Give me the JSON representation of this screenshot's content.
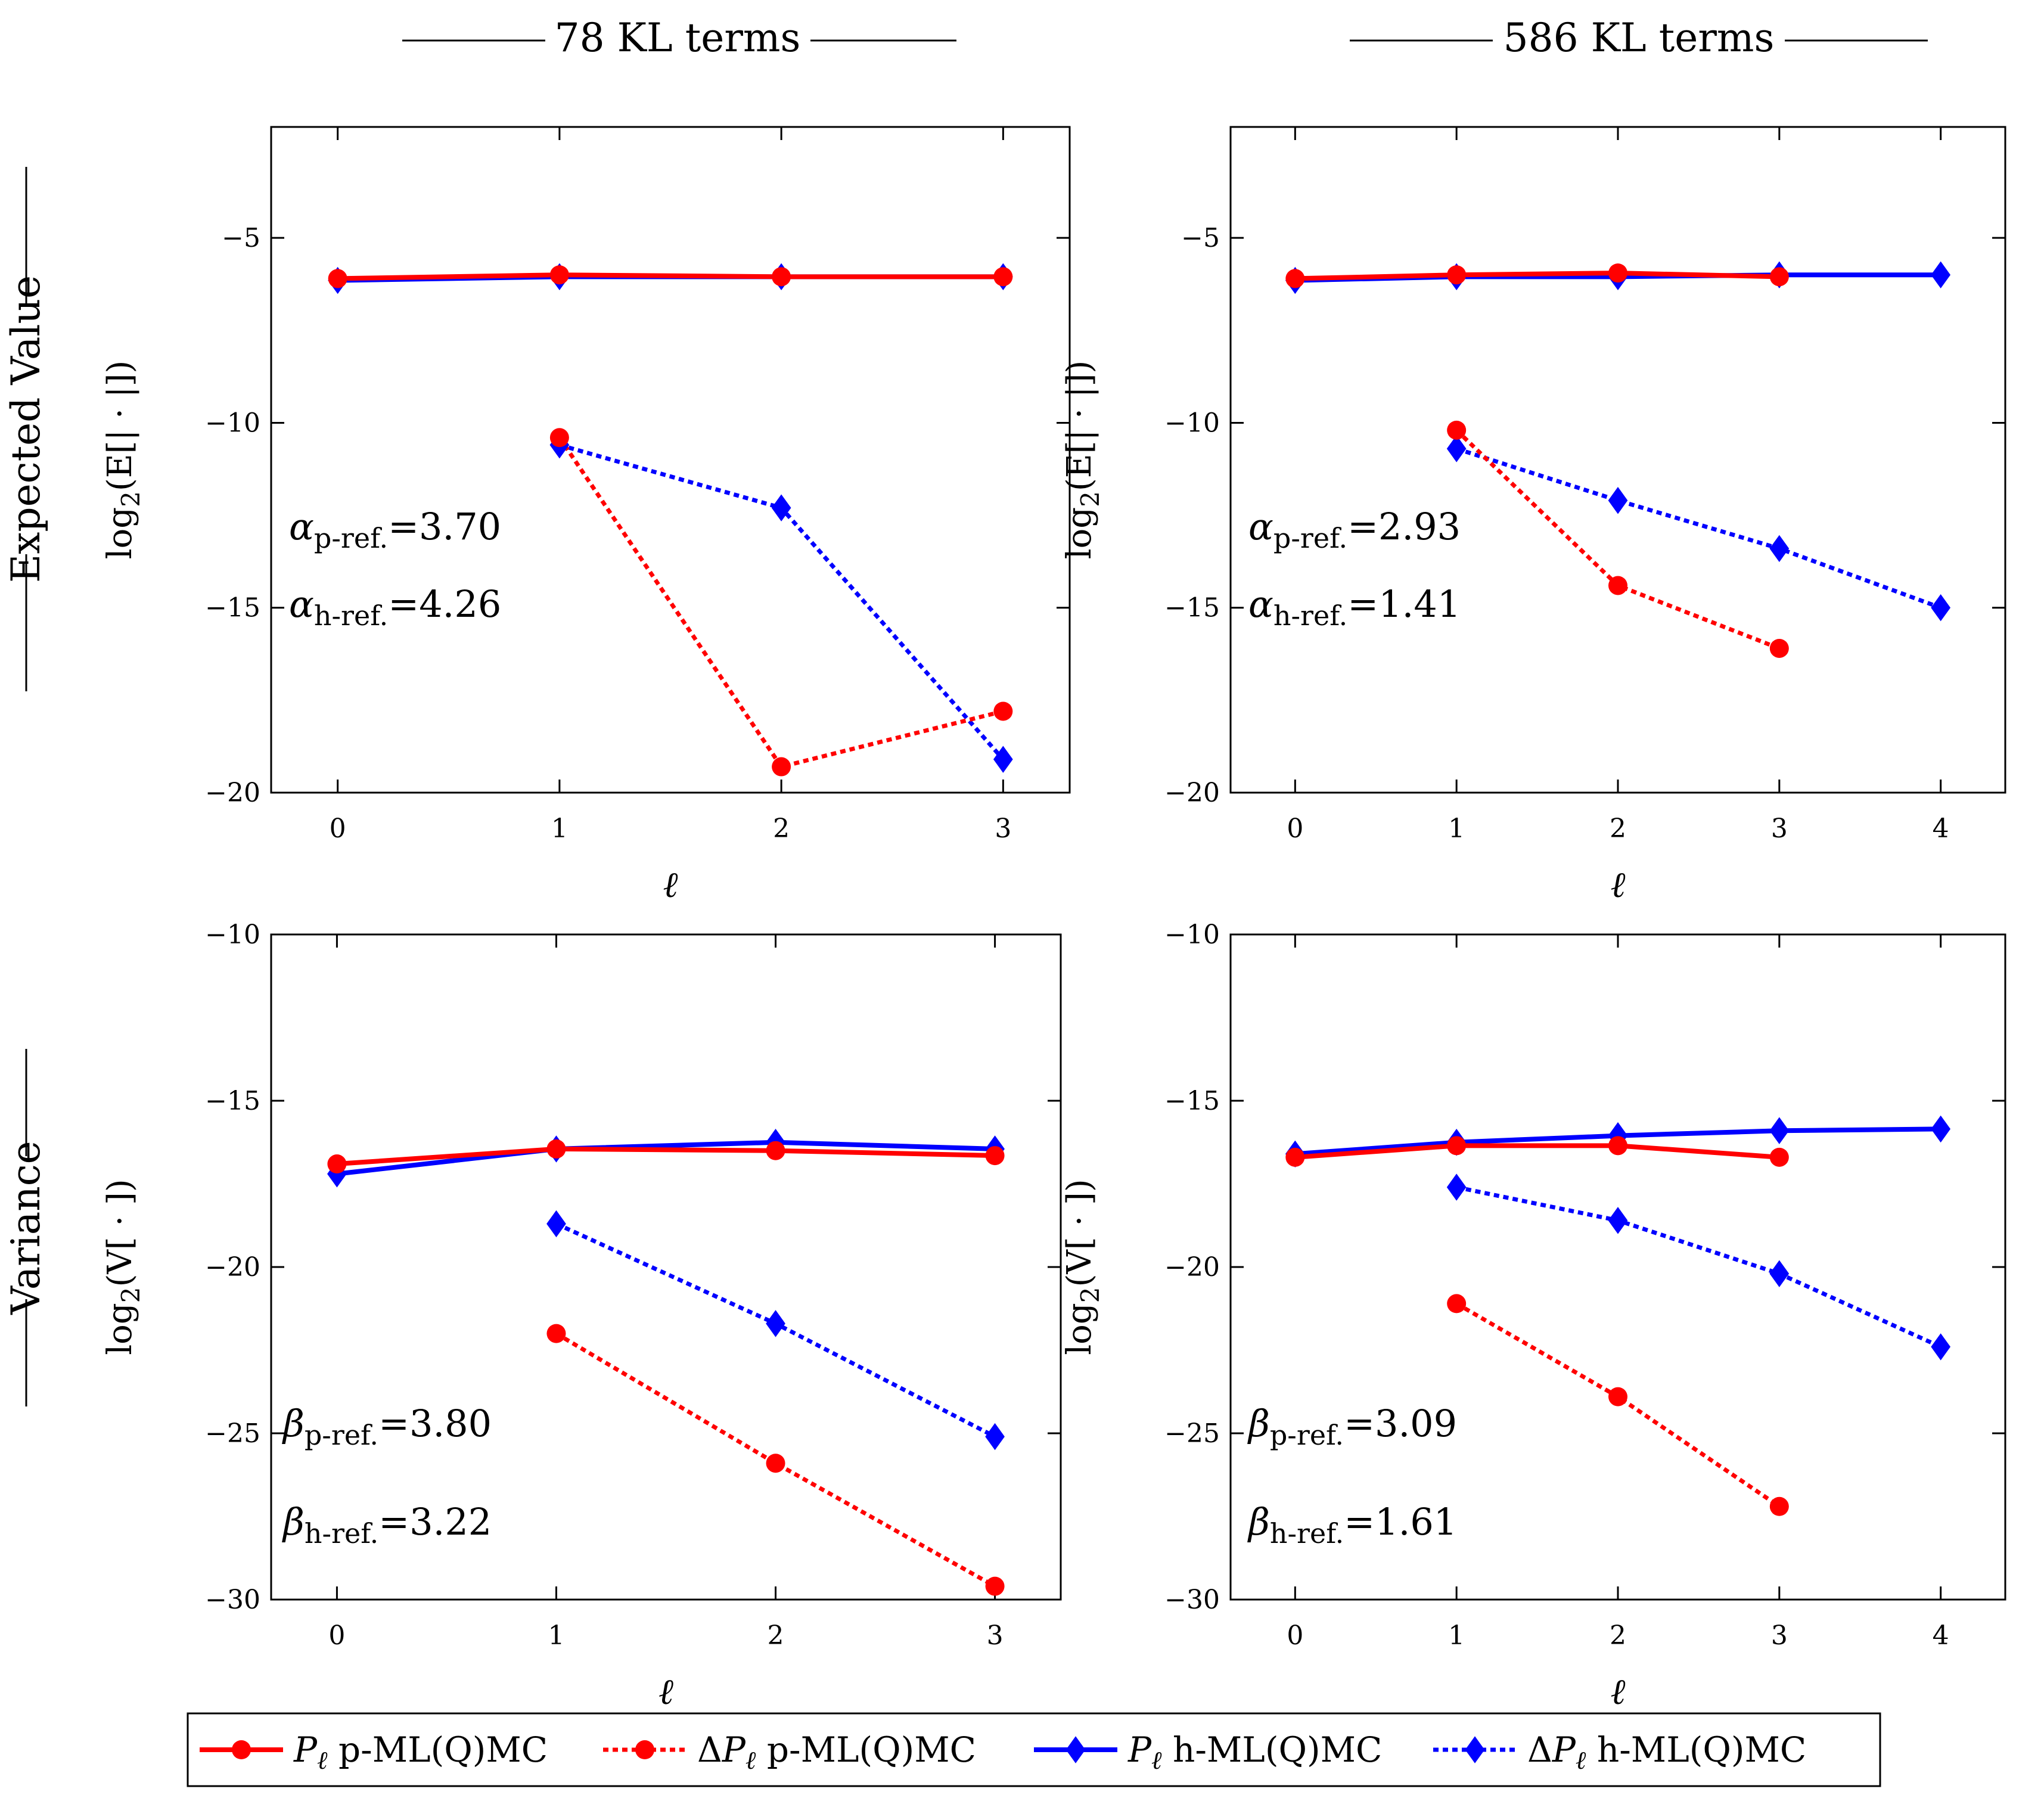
{
  "colors": {
    "red": "#ff0000",
    "blue": "#0000ff",
    "axis": "#000000"
  },
  "column_titles": [
    "78 KL terms",
    "586 KL terms"
  ],
  "row_titles": [
    "Expected Value",
    "Variance"
  ],
  "ylabels": {
    "expected": "log2(E[| · |])",
    "variance": "log2(V[ · ])"
  },
  "xlabel": "ℓ",
  "rates": {
    "p0": {
      "p": "α_p-ref.=3.70",
      "h": "α_h-ref.=4.26"
    },
    "p1": {
      "p": "α_p-ref.=2.93",
      "h": "α_h-ref.=1.41"
    },
    "p2": {
      "p": "β_p-ref.=3.80",
      "h": "β_h-ref.=3.22"
    },
    "p3": {
      "p": "β_p-ref.=3.09",
      "h": "β_h-ref.=1.61"
    }
  },
  "legend": [
    {
      "label": "P_ℓ p-ML(Q)MC",
      "color": "red",
      "marker": "circle",
      "dash": false
    },
    {
      "label": "ΔP_ℓ p-ML(Q)MC",
      "color": "red",
      "marker": "circle",
      "dash": true
    },
    {
      "label": "P_ℓ h-ML(Q)MC",
      "color": "blue",
      "marker": "diamond",
      "dash": false
    },
    {
      "label": "ΔP_ℓ h-ML(Q)MC",
      "color": "blue",
      "marker": "diamond",
      "dash": true
    }
  ],
  "chart_data": [
    {
      "type": "line",
      "title": "78 KL terms",
      "row": "Expected Value",
      "xlabel": "ℓ",
      "ylabel": "log2(E[| · |])",
      "xlim": [
        -0.3,
        3.3
      ],
      "ylim": [
        -20,
        -2
      ],
      "xticks": [
        0,
        1,
        2,
        3
      ],
      "yticks": [
        -20,
        -15,
        -10,
        -5
      ],
      "series": [
        {
          "name": "P_ℓ p-ML(Q)MC",
          "x": [
            0,
            1,
            2,
            3
          ],
          "values": [
            -6.1,
            -6.0,
            -6.05,
            -6.05
          ]
        },
        {
          "name": "ΔP_ℓ p-ML(Q)MC",
          "x": [
            1,
            2,
            3
          ],
          "values": [
            -10.4,
            -19.3,
            -17.8
          ]
        },
        {
          "name": "P_ℓ h-ML(Q)MC",
          "x": [
            0,
            1,
            2,
            3
          ],
          "values": [
            -6.15,
            -6.05,
            -6.05,
            -6.05
          ]
        },
        {
          "name": "ΔP_ℓ h-ML(Q)MC",
          "x": [
            1,
            2,
            3
          ],
          "values": [
            -10.6,
            -12.3,
            -19.1
          ]
        }
      ]
    },
    {
      "type": "line",
      "title": "586 KL terms",
      "row": "Expected Value",
      "xlabel": "ℓ",
      "ylabel": "log2(E[| · |])",
      "xlim": [
        -0.4,
        4.4
      ],
      "ylim": [
        -20,
        -2
      ],
      "xticks": [
        0,
        1,
        2,
        3,
        4
      ],
      "yticks": [
        -20,
        -15,
        -10,
        -5
      ],
      "series": [
        {
          "name": "P_ℓ p-ML(Q)MC",
          "x": [
            0,
            1,
            2,
            3
          ],
          "values": [
            -6.1,
            -6.0,
            -5.95,
            -6.05
          ]
        },
        {
          "name": "ΔP_ℓ p-ML(Q)MC",
          "x": [
            1,
            2,
            3
          ],
          "values": [
            -10.2,
            -14.4,
            -16.1
          ]
        },
        {
          "name": "P_ℓ h-ML(Q)MC",
          "x": [
            0,
            1,
            2,
            3,
            4
          ],
          "values": [
            -6.15,
            -6.05,
            -6.05,
            -6.0,
            -6.0
          ]
        },
        {
          "name": "ΔP_ℓ h-ML(Q)MC",
          "x": [
            1,
            2,
            3,
            4
          ],
          "values": [
            -10.7,
            -12.1,
            -13.4,
            -15.0
          ]
        }
      ]
    },
    {
      "type": "line",
      "title": "78 KL terms",
      "row": "Variance",
      "xlabel": "ℓ",
      "ylabel": "log2(V[ · ])",
      "xlim": [
        -0.3,
        3.3
      ],
      "ylim": [
        -30,
        -10
      ],
      "xticks": [
        0,
        1,
        2,
        3
      ],
      "yticks": [
        -30,
        -25,
        -20,
        -15,
        -10
      ],
      "series": [
        {
          "name": "P_ℓ p-ML(Q)MC",
          "x": [
            0,
            1,
            2,
            3
          ],
          "values": [
            -16.9,
            -16.45,
            -16.5,
            -16.65
          ]
        },
        {
          "name": "ΔP_ℓ p-ML(Q)MC",
          "x": [
            1,
            2,
            3
          ],
          "values": [
            -22.0,
            -25.9,
            -29.6
          ]
        },
        {
          "name": "P_ℓ h-ML(Q)MC",
          "x": [
            0,
            1,
            2,
            3
          ],
          "values": [
            -17.2,
            -16.45,
            -16.25,
            -16.45
          ]
        },
        {
          "name": "ΔP_ℓ h-ML(Q)MC",
          "x": [
            1,
            2,
            3
          ],
          "values": [
            -18.7,
            -21.7,
            -25.1
          ]
        }
      ]
    },
    {
      "type": "line",
      "title": "586 KL terms",
      "row": "Variance",
      "xlabel": "ℓ",
      "ylabel": "log2(V[ · ])",
      "xlim": [
        -0.4,
        4.4
      ],
      "ylim": [
        -30,
        -10
      ],
      "xticks": [
        0,
        1,
        2,
        3,
        4
      ],
      "yticks": [
        -30,
        -25,
        -20,
        -15,
        -10
      ],
      "series": [
        {
          "name": "P_ℓ p-ML(Q)MC",
          "x": [
            0,
            1,
            2,
            3
          ],
          "values": [
            -16.7,
            -16.35,
            -16.35,
            -16.7
          ]
        },
        {
          "name": "ΔP_ℓ p-ML(Q)MC",
          "x": [
            1,
            2,
            3
          ],
          "values": [
            -21.1,
            -23.9,
            -27.2
          ]
        },
        {
          "name": "P_ℓ h-ML(Q)MC",
          "x": [
            0,
            1,
            2,
            3,
            4
          ],
          "values": [
            -16.6,
            -16.25,
            -16.05,
            -15.9,
            -15.85
          ]
        },
        {
          "name": "ΔP_ℓ h-ML(Q)MC",
          "x": [
            1,
            2,
            3,
            4
          ],
          "values": [
            -17.6,
            -18.6,
            -20.2,
            -22.4
          ]
        }
      ]
    }
  ]
}
